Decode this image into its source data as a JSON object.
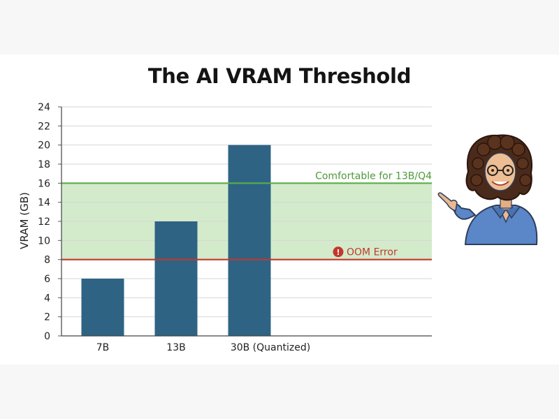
{
  "chart_data": {
    "type": "bar",
    "title": "The AI VRAM Threshold",
    "ylabel": "VRAM (GB)",
    "xlabel": "",
    "categories": [
      "7B",
      "13B",
      "30B (Quantized)"
    ],
    "values": [
      6,
      12,
      20
    ],
    "ylim": [
      0,
      24
    ],
    "yticks": [
      0,
      2,
      4,
      6,
      8,
      10,
      12,
      14,
      16,
      18,
      20,
      22,
      24
    ],
    "grid": true,
    "bar_color": "#2e6384",
    "shaded_band": {
      "from": 8,
      "to": 16,
      "color": "#d3ebcb"
    },
    "reference_lines": [
      {
        "value": 16,
        "label": "Comfortable for 13B/Q4",
        "color": "#5aad4a"
      },
      {
        "value": 8,
        "label": "OOM Error",
        "color": "#c0392b",
        "icon": "exclamation-icon"
      }
    ]
  },
  "illustration": {
    "icon": "presenter-woman-pointing-icon"
  }
}
